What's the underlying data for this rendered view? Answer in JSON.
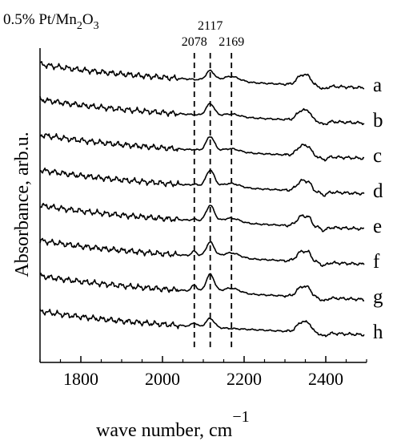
{
  "chart_data": {
    "type": "line",
    "title": "",
    "sample_prefix": "0.5% Pt/Mn",
    "sample_sub1": "2",
    "sample_mid": "O",
    "sample_sub2": "3",
    "xlabel": "wave number,   cm",
    "xlabel_sup": "−1",
    "ylabel": "Absorbance,   arb.u.",
    "xlim": [
      1700,
      2500
    ],
    "xticks": [
      1800,
      2000,
      2200,
      2400
    ],
    "xtick_labels": [
      "1800",
      "2000",
      "2200",
      "2400"
    ],
    "reference_lines": [
      {
        "x": 2078,
        "label": "2078"
      },
      {
        "x": 2117,
        "label": "2117"
      },
      {
        "x": 2169,
        "label": "2169"
      }
    ],
    "offset_step": 44,
    "series": [
      {
        "name": "a",
        "peaks": {
          "2078": 0.0,
          "2117": 0.6,
          "2169": 0.45
        }
      },
      {
        "name": "b",
        "peaks": {
          "2078": 0.0,
          "2117": 0.75,
          "2169": 0.25
        }
      },
      {
        "name": "c",
        "peaks": {
          "2078": 0.05,
          "2117": 0.9,
          "2169": 0.3
        }
      },
      {
        "name": "d",
        "peaks": {
          "2078": 0.1,
          "2117": 1.0,
          "2169": 0.35
        }
      },
      {
        "name": "e",
        "peaks": {
          "2078": 0.15,
          "2117": 1.0,
          "2169": 0.4
        }
      },
      {
        "name": "f",
        "peaks": {
          "2078": 0.45,
          "2117": 0.9,
          "2169": 0.45
        }
      },
      {
        "name": "g",
        "peaks": {
          "2078": 0.6,
          "2117": 1.1,
          "2169": 0.45
        }
      },
      {
        "name": "h",
        "peaks": {
          "2078": 0.35,
          "2117": 0.55,
          "2169": 0.0
        }
      }
    ]
  }
}
